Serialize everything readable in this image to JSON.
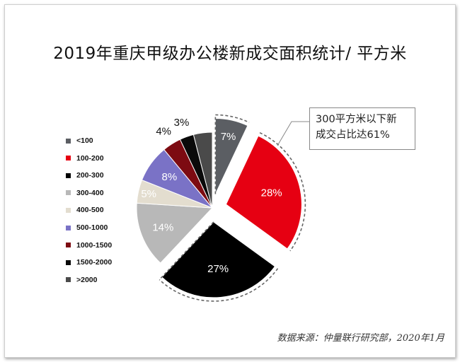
{
  "title": "2019年重庆甲级办公楼新成交面积统计/ 平方米",
  "chart_data": {
    "type": "pie",
    "categories": [
      "<100",
      "100-200",
      "200-300",
      "300-400",
      "400-500",
      "500-1000",
      "1000-1500",
      "1500-2000",
      ">2000"
    ],
    "values": [
      7,
      28,
      27,
      14,
      5,
      8,
      4,
      3,
      4
    ],
    "slice_labels": [
      "7%",
      "28%",
      "27%",
      "14%",
      "5%",
      "8%",
      "4%",
      "3%",
      ""
    ],
    "colors": [
      "#5b5e63",
      "#e60012",
      "#000000",
      "#b8b8b8",
      "#e3ddcf",
      "#7a72c6",
      "#7d0b12",
      "#0a0a0a",
      "#4a4a4a"
    ],
    "legend_placement": "left"
  },
  "callout": {
    "line1": "300平方米以下新",
    "line2": "成交占比达61%"
  },
  "source": "数据来源：仲量联行研究部，2020年1月"
}
